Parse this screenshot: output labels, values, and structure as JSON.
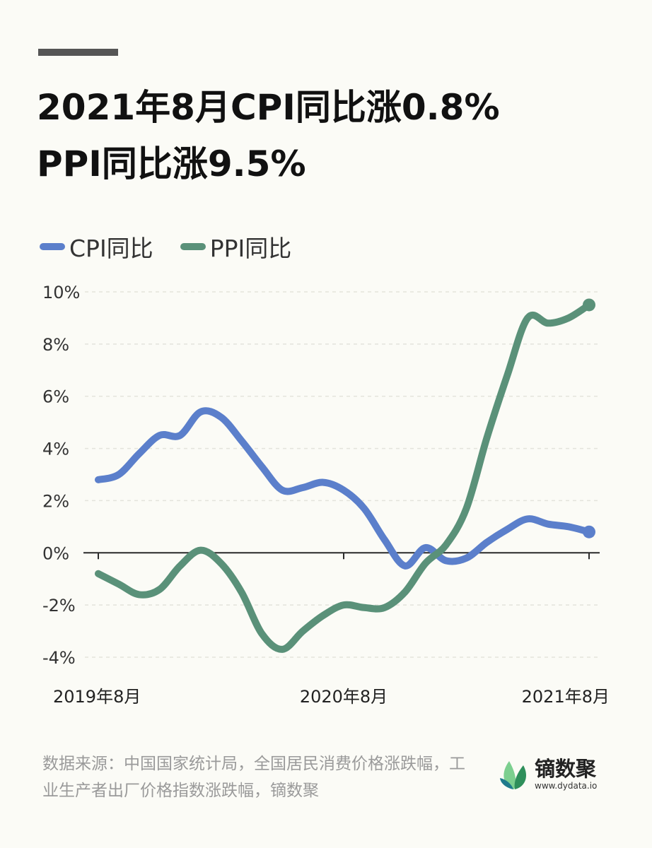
{
  "title": {
    "line1": "2021年8月CPI同比涨0.8%",
    "line2": "PPI同比涨9.5%"
  },
  "legend": {
    "cpi_label": "CPI同比",
    "ppi_label": "PPI同比"
  },
  "footer": {
    "source": "数据来源：中国国家统计局，全国居民消费价格涨跌幅，工业生产者出厂价格指数涨跌幅，镝数聚",
    "logo_name": "镝数聚",
    "logo_url": "www.dydata.io"
  },
  "colors": {
    "cpi": "#5b7fcb",
    "ppi": "#5a9179",
    "logo_green_dark": "#2f8f5b",
    "logo_green_light": "#7ccf8f",
    "logo_teal": "#1f7a8c"
  },
  "chart_data": {
    "type": "line",
    "x": [
      "2019年8月",
      "2019年9月",
      "2019年10月",
      "2019年11月",
      "2019年12月",
      "2020年1月",
      "2020年2月",
      "2020年3月",
      "2020年4月",
      "2020年5月",
      "2020年6月",
      "2020年7月",
      "2020年8月",
      "2020年9月",
      "2020年10月",
      "2020年11月",
      "2020年12月",
      "2021年1月",
      "2021年2月",
      "2021年3月",
      "2021年4月",
      "2021年5月",
      "2021年6月",
      "2021年7月",
      "2021年8月"
    ],
    "xticks": [
      "2019年8月",
      "2020年8月",
      "2021年8月"
    ],
    "yticks": [
      "10%",
      "8%",
      "6%",
      "4%",
      "2%",
      "0%",
      "-2%",
      "-4%"
    ],
    "ylim": [
      -4,
      10
    ],
    "grid": true,
    "legend_position": "top-left",
    "series": [
      {
        "name": "CPI同比",
        "values": [
          2.8,
          3.0,
          3.8,
          4.5,
          4.5,
          5.4,
          5.2,
          4.3,
          3.3,
          2.4,
          2.5,
          2.7,
          2.4,
          1.7,
          0.5,
          -0.5,
          0.2,
          -0.3,
          -0.2,
          0.4,
          0.9,
          1.3,
          1.1,
          1.0,
          0.8
        ]
      },
      {
        "name": "PPI同比",
        "values": [
          -0.8,
          -1.2,
          -1.6,
          -1.4,
          -0.5,
          0.1,
          -0.4,
          -1.5,
          -3.1,
          -3.7,
          -3.0,
          -2.4,
          -2.0,
          -2.1,
          -2.1,
          -1.5,
          -0.4,
          0.3,
          1.7,
          4.4,
          6.8,
          9.0,
          8.8,
          9.0,
          9.5
        ]
      }
    ]
  }
}
